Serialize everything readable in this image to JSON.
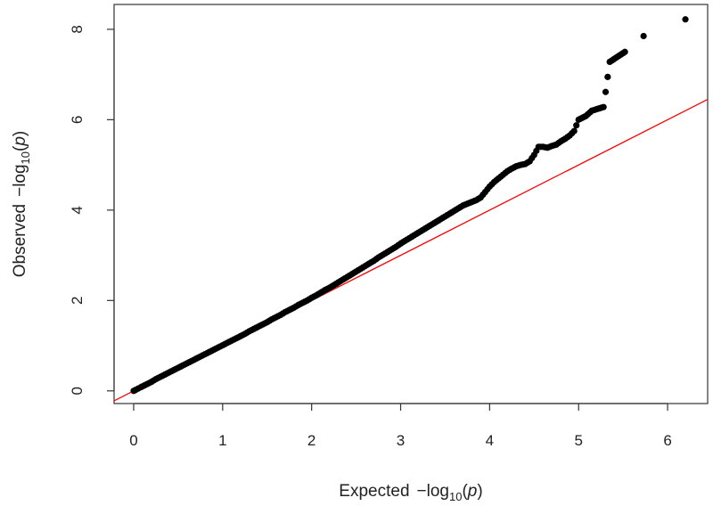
{
  "chart_data": {
    "type": "scatter",
    "title": "",
    "xlabel": {
      "prefix": "Expected",
      "minus": "−",
      "log_word": "log",
      "log_base": "10",
      "variable": "p"
    },
    "ylabel": {
      "prefix": "Observed",
      "minus": "−",
      "log_word": "log",
      "log_base": "10",
      "variable": "p"
    },
    "xlim": [
      -0.22,
      6.45
    ],
    "ylim": [
      -0.28,
      8.55
    ],
    "x_ticks": [
      0,
      1,
      2,
      3,
      4,
      5,
      6
    ],
    "x_tick_labels": [
      "0",
      "1",
      "2",
      "3",
      "4",
      "5",
      "6"
    ],
    "y_ticks": [
      0,
      2,
      4,
      6,
      8
    ],
    "y_tick_labels": [
      "0",
      "2",
      "4",
      "6",
      "8"
    ],
    "grid": false,
    "point_color": "#000000",
    "reference_line": {
      "type": "identity",
      "color": "#ff0000",
      "slope": 1,
      "intercept": 0
    },
    "series": [
      {
        "x": [
          0.0,
          0.02,
          0.05,
          0.08,
          0.1,
          0.15,
          0.2,
          0.25,
          0.3,
          0.35,
          0.4,
          0.45,
          0.5,
          0.55,
          0.6,
          0.65,
          0.7,
          0.75,
          0.8,
          0.85,
          0.9,
          0.95,
          1.0,
          1.05,
          1.1,
          1.15,
          1.2,
          1.25,
          1.3,
          1.35,
          1.4,
          1.45,
          1.5,
          1.55,
          1.6,
          1.65,
          1.7,
          1.75,
          1.8,
          1.85,
          1.9,
          1.95,
          2.0,
          2.05,
          2.1,
          2.15,
          2.2,
          2.25,
          2.3,
          2.35,
          2.4,
          2.45,
          2.5,
          2.55,
          2.6,
          2.65,
          2.7,
          2.75,
          2.8,
          2.85,
          2.9,
          2.95,
          3.0,
          3.05,
          3.1,
          3.15,
          3.2,
          3.25,
          3.3,
          3.35,
          3.4,
          3.45,
          3.5,
          3.55,
          3.6,
          3.65,
          3.7,
          3.75,
          3.8,
          3.85,
          3.9,
          3.95,
          4.0,
          4.05,
          4.1,
          4.15,
          4.2,
          4.25,
          4.3,
          4.35,
          4.4,
          4.45,
          4.5,
          4.55,
          4.6,
          4.65,
          4.7,
          4.75,
          4.8,
          4.85,
          4.9,
          4.95,
          5.0,
          5.08,
          5.15,
          5.28,
          5.35,
          5.52,
          5.73,
          6.2
        ],
        "y": [
          0.0,
          0.02,
          0.05,
          0.08,
          0.1,
          0.15,
          0.2,
          0.26,
          0.31,
          0.36,
          0.41,
          0.46,
          0.51,
          0.56,
          0.61,
          0.66,
          0.71,
          0.76,
          0.81,
          0.86,
          0.91,
          0.96,
          1.01,
          1.06,
          1.11,
          1.16,
          1.21,
          1.26,
          1.32,
          1.37,
          1.42,
          1.47,
          1.52,
          1.58,
          1.63,
          1.68,
          1.74,
          1.79,
          1.84,
          1.9,
          1.95,
          2.0,
          2.06,
          2.11,
          2.17,
          2.23,
          2.28,
          2.34,
          2.4,
          2.46,
          2.52,
          2.58,
          2.64,
          2.7,
          2.76,
          2.82,
          2.88,
          2.95,
          3.01,
          3.07,
          3.13,
          3.19,
          3.26,
          3.32,
          3.38,
          3.44,
          3.5,
          3.56,
          3.62,
          3.68,
          3.74,
          3.8,
          3.86,
          3.92,
          3.98,
          4.04,
          4.1,
          4.14,
          4.18,
          4.22,
          4.28,
          4.4,
          4.52,
          4.62,
          4.7,
          4.78,
          4.86,
          4.92,
          4.97,
          5.0,
          5.02,
          5.08,
          5.22,
          5.4,
          5.4,
          5.38,
          5.42,
          5.45,
          5.52,
          5.58,
          5.65,
          5.75,
          6.0,
          6.08,
          6.2,
          6.28,
          7.28,
          7.5,
          7.85,
          8.22
        ]
      }
    ]
  }
}
